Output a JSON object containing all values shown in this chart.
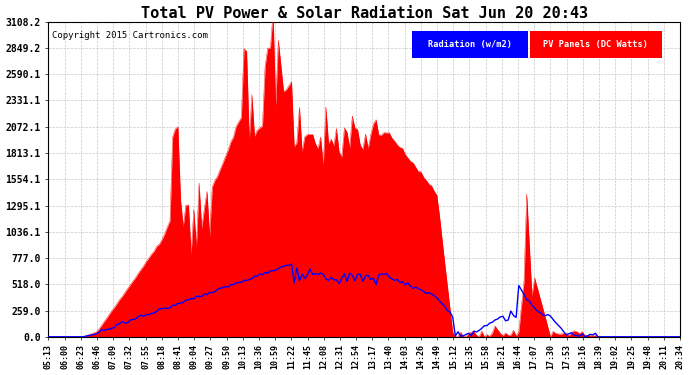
{
  "title": "Total PV Power & Solar Radiation Sat Jun 20 20:43",
  "copyright": "Copyright 2015 Cartronics.com",
  "legend_radiation": "Radiation (w/m2)",
  "legend_pv": "PV Panels (DC Watts)",
  "yticks": [
    0.0,
    259.0,
    518.0,
    777.0,
    1036.1,
    1295.1,
    1554.1,
    1813.1,
    2072.1,
    2331.1,
    2590.1,
    2849.2,
    3108.2
  ],
  "ymax": 3108.2,
  "background_color": "#ffffff",
  "plot_bg_color": "#ffffff",
  "grid_color": "#bbbbbb",
  "pv_color": "#ff0000",
  "radiation_color": "#0000ff",
  "x_labels": [
    "05:13",
    "06:00",
    "06:23",
    "06:46",
    "07:09",
    "07:32",
    "07:55",
    "08:18",
    "08:41",
    "09:04",
    "09:27",
    "09:50",
    "10:13",
    "10:36",
    "10:59",
    "11:22",
    "11:45",
    "12:08",
    "12:31",
    "12:54",
    "13:17",
    "13:40",
    "14:03",
    "14:26",
    "14:49",
    "15:12",
    "15:35",
    "15:58",
    "16:21",
    "16:44",
    "17:07",
    "17:30",
    "17:53",
    "18:16",
    "18:39",
    "19:02",
    "19:25",
    "19:48",
    "20:11",
    "20:34"
  ],
  "title_fontsize": 11,
  "tick_fontsize": 7,
  "xlabel_fontsize": 6
}
